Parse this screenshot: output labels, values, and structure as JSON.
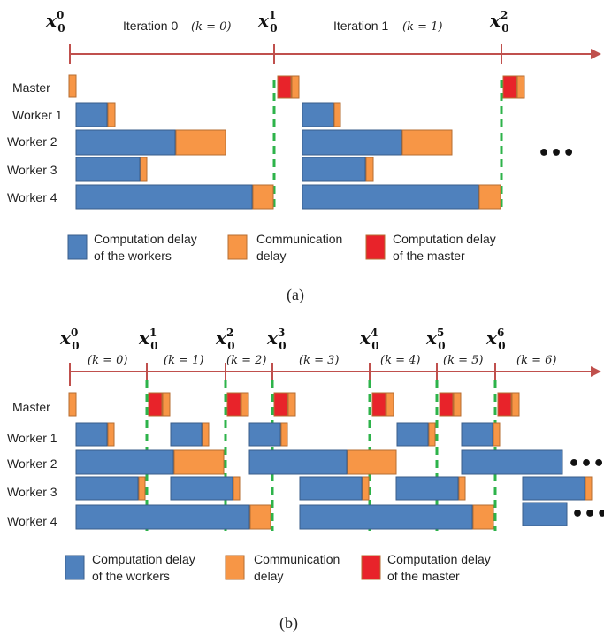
{
  "rows": [
    "Master",
    "Worker 1",
    "Worker 2",
    "Worker 3",
    "Worker 4"
  ],
  "colors": {
    "worker": "#4F81BD",
    "worker_edge": "#385D8A",
    "comm": "#F79646",
    "comm_edge": "#B66D31",
    "master": "#E8232A",
    "axis": "#C0504D",
    "sync": "#2DB34A"
  },
  "legend": {
    "worker": "Computation delay\nof the workers",
    "comm": "Communication\ndelay",
    "master": "Computation delay\nof the master"
  },
  "panel_a": {
    "caption": "(a)",
    "iterations": [
      {
        "title": "Iteration 0",
        "k": "(k = 0)"
      },
      {
        "title": "Iteration 1",
        "k": "(k = 1)"
      }
    ],
    "x_labels": [
      {
        "base": "x",
        "sup": "0",
        "sub": "0"
      },
      {
        "base": "x",
        "sup": "1",
        "sub": "0"
      },
      {
        "base": "x",
        "sup": "2",
        "sub": "0"
      }
    ],
    "continuation": "•••"
  },
  "panel_b": {
    "caption": "(b)",
    "k_labels": [
      "(k = 0)",
      "(k = 1)",
      "(k = 2)",
      "(k = 3)",
      "(k = 4)",
      "(k = 5)",
      "(k = 6)"
    ],
    "x_labels": [
      {
        "base": "x",
        "sup": "0",
        "sub": "0"
      },
      {
        "base": "x",
        "sup": "1",
        "sub": "0"
      },
      {
        "base": "x",
        "sup": "2",
        "sub": "0"
      },
      {
        "base": "x",
        "sup": "3",
        "sub": "0"
      },
      {
        "base": "x",
        "sup": "4",
        "sub": "0"
      },
      {
        "base": "x",
        "sup": "5",
        "sub": "0"
      },
      {
        "base": "x",
        "sup": "6",
        "sub": "0"
      }
    ],
    "continuation": "•••"
  }
}
